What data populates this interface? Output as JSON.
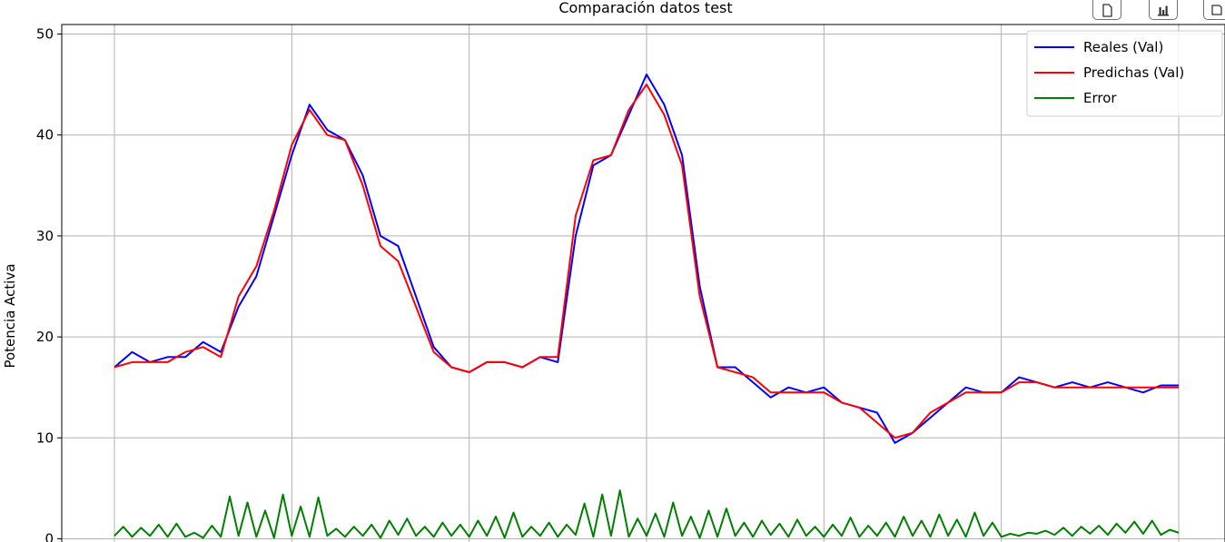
{
  "toolbar": {
    "buttons": [
      {
        "icon": "document-icon"
      },
      {
        "icon": "bar-chart-icon"
      },
      {
        "icon": "save-icon"
      }
    ]
  },
  "chart_data": {
    "type": "line",
    "title": "Comparación datos test",
    "xlabel": "",
    "ylabel": "Potencia Activa",
    "ylim": [
      0,
      51
    ],
    "xlim": [
      0,
      300
    ],
    "yticks": [
      0,
      10,
      20,
      30,
      40,
      50
    ],
    "ytick_labels": [
      "0",
      "10",
      "20",
      "30",
      "40",
      "50"
    ],
    "grid": true,
    "legend_position": "top-right",
    "series": [
      {
        "name": "Reales (Val)",
        "color": "#0000ff",
        "x": [
          0,
          5,
          10,
          15,
          20,
          25,
          30,
          35,
          40,
          45,
          50,
          55,
          60,
          65,
          70,
          75,
          80,
          85,
          90,
          95,
          100,
          105,
          110,
          115,
          120,
          125,
          130,
          135,
          140,
          145,
          150,
          155,
          160,
          165,
          170,
          175,
          180,
          185,
          190,
          195,
          200,
          205,
          210,
          215,
          220,
          225,
          230,
          235,
          240,
          245,
          250,
          255,
          260,
          265,
          270,
          275,
          280,
          285,
          290,
          295,
          300
        ],
        "values": [
          17,
          18.5,
          17.5,
          18,
          18,
          19.5,
          18.5,
          23,
          26,
          32,
          38,
          43,
          40.5,
          39.5,
          36,
          30,
          29,
          24,
          19,
          17,
          16.5,
          17.5,
          17.5,
          17,
          18,
          17.5,
          30,
          37,
          38,
          42,
          46,
          43,
          38,
          25,
          17,
          17,
          15.5,
          14,
          15,
          14.5,
          15,
          13.5,
          13,
          12.5,
          9.5,
          10.5,
          12,
          13.5,
          15,
          14.5,
          14.5,
          16,
          15.5,
          15,
          15.5,
          15,
          15.5,
          15,
          14.5,
          15.2,
          15.2
        ],
        "label_positions": []
      },
      {
        "name": "Predichas (Val)",
        "color": "#ff0000",
        "x": [
          0,
          5,
          10,
          15,
          20,
          25,
          30,
          35,
          40,
          45,
          50,
          55,
          60,
          65,
          70,
          75,
          80,
          85,
          90,
          95,
          100,
          105,
          110,
          115,
          120,
          125,
          130,
          135,
          140,
          145,
          150,
          155,
          160,
          165,
          170,
          175,
          180,
          185,
          190,
          195,
          200,
          205,
          210,
          215,
          220,
          225,
          230,
          235,
          240,
          245,
          250,
          255,
          260,
          265,
          270,
          275,
          280,
          285,
          290,
          295,
          300
        ],
        "values": [
          17,
          17.5,
          17.5,
          17.5,
          18.5,
          19,
          18,
          24,
          27,
          32.5,
          39,
          42.5,
          40,
          39.5,
          35,
          29,
          27.5,
          23,
          18.5,
          17,
          16.5,
          17.5,
          17.5,
          17,
          18,
          18,
          32,
          37.5,
          38,
          42.5,
          45,
          42,
          37,
          24,
          17,
          16.5,
          16,
          14.5,
          14.5,
          14.5,
          14.5,
          13.5,
          13,
          11.5,
          10,
          10.5,
          12.5,
          13.5,
          14.5,
          14.5,
          14.5,
          15.5,
          15.5,
          15,
          15,
          15,
          15,
          15,
          15,
          15,
          15
        ],
        "label_positions": []
      },
      {
        "name": "Error",
        "color": "#008000",
        "x": [
          0,
          2.5,
          5,
          7.5,
          10,
          12.5,
          15,
          17.5,
          20,
          22.5,
          25,
          27.5,
          30,
          32.5,
          35,
          37.5,
          40,
          42.5,
          45,
          47.5,
          50,
          52.5,
          55,
          57.5,
          60,
          62.5,
          65,
          67.5,
          70,
          72.5,
          75,
          77.5,
          80,
          82.5,
          85,
          87.5,
          90,
          92.5,
          95,
          97.5,
          100,
          102.5,
          105,
          107.5,
          110,
          112.5,
          115,
          117.5,
          120,
          122.5,
          125,
          127.5,
          130,
          132.5,
          135,
          137.5,
          140,
          142.5,
          145,
          147.5,
          150,
          152.5,
          155,
          157.5,
          160,
          162.5,
          165,
          167.5,
          170,
          172.5,
          175,
          177.5,
          180,
          182.5,
          185,
          187.5,
          190,
          192.5,
          195,
          197.5,
          200,
          202.5,
          205,
          207.5,
          210,
          212.5,
          215,
          217.5,
          220,
          222.5,
          225,
          227.5,
          230,
          232.5,
          235,
          237.5,
          240,
          242.5,
          245,
          247.5,
          250,
          252.5,
          255,
          257.5,
          260,
          262.5,
          265,
          267.5,
          270,
          272.5,
          275,
          277.5,
          280,
          282.5,
          285,
          287.5,
          290,
          292.5,
          295,
          297.5,
          300
        ],
        "values": [
          0.3,
          1.2,
          0.2,
          1.1,
          0.3,
          1.4,
          0.2,
          1.5,
          0.2,
          0.6,
          0.1,
          1.3,
          0.2,
          4.2,
          0.3,
          3.6,
          0.2,
          2.8,
          0.1,
          4.4,
          0.3,
          3.2,
          0.2,
          4.1,
          0.3,
          1.0,
          0.2,
          1.2,
          0.3,
          1.4,
          0.1,
          1.8,
          0.4,
          2.0,
          0.3,
          1.2,
          0.2,
          1.6,
          0.3,
          1.4,
          0.2,
          1.8,
          0.3,
          2.2,
          0.1,
          2.6,
          0.2,
          1.2,
          0.3,
          1.6,
          0.2,
          1.4,
          0.4,
          3.5,
          0.2,
          4.4,
          0.3,
          4.8,
          0.2,
          2.0,
          0.3,
          2.5,
          0.2,
          3.6,
          0.3,
          2.2,
          0.1,
          2.8,
          0.2,
          3.0,
          0.3,
          1.6,
          0.2,
          1.8,
          0.4,
          1.5,
          0.2,
          1.9,
          0.3,
          1.2,
          0.2,
          1.4,
          0.3,
          2.1,
          0.2,
          1.3,
          0.3,
          1.6,
          0.2,
          2.2,
          0.3,
          1.8,
          0.2,
          2.4,
          0.3,
          1.9,
          0.2,
          2.6,
          0.3,
          1.6,
          0.2,
          0.5,
          0.3,
          0.6,
          0.5,
          0.8,
          0.4,
          1.1,
          0.3,
          1.2,
          0.5,
          1.3,
          0.4,
          1.5,
          0.6,
          1.7,
          0.5,
          1.8,
          0.4,
          0.9,
          0.6
        ],
        "label_positions": []
      }
    ]
  }
}
